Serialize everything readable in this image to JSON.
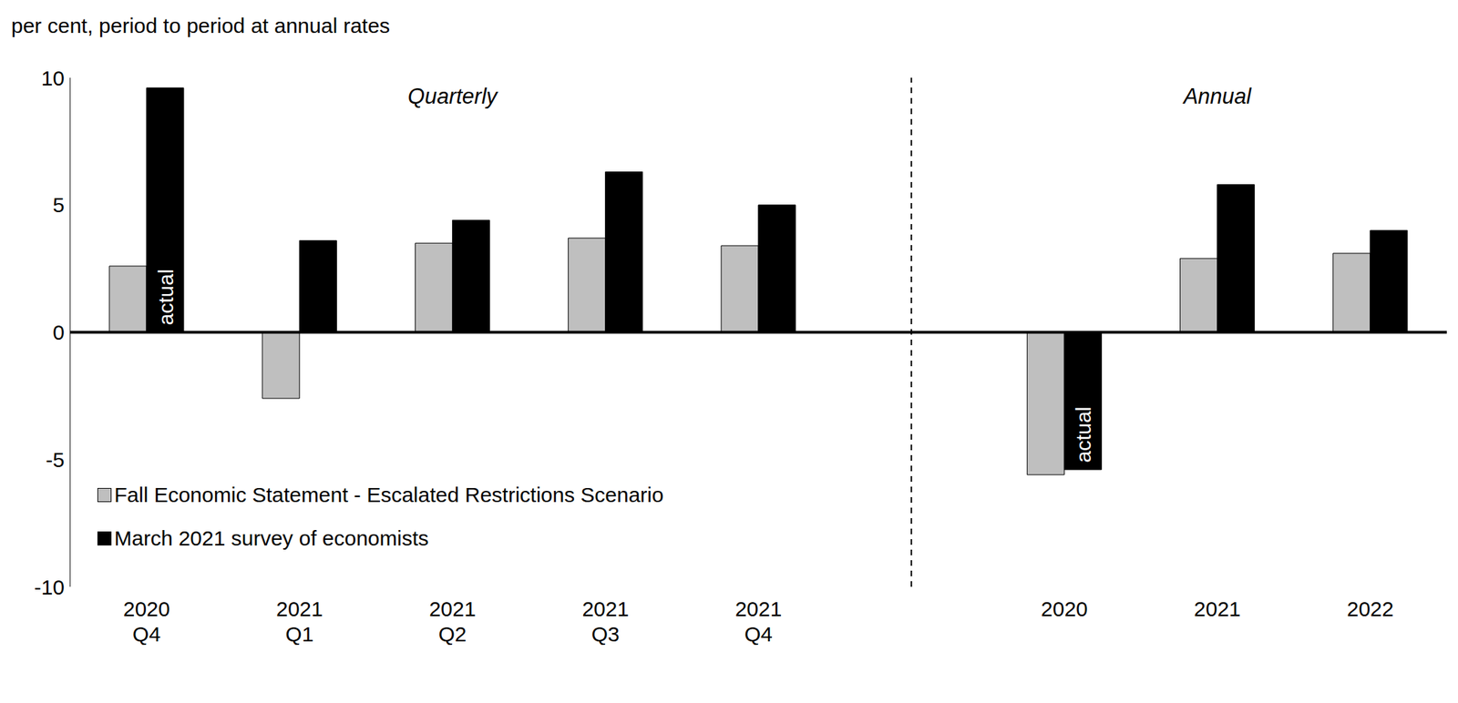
{
  "chart_data": {
    "type": "bar",
    "y_label": "per cent, period to period at annual rates",
    "categories": [
      "2020 Q4",
      "2021 Q1",
      "2021 Q2",
      "2021 Q3",
      "2021 Q4",
      null,
      "2020",
      "2021",
      "2022"
    ],
    "series": [
      {
        "name": "Fall Economic Statement - Escalated Restrictions Scenario",
        "color": "#bfbfbf",
        "values": [
          2.6,
          -2.6,
          3.5,
          3.7,
          3.4,
          null,
          -5.6,
          2.9,
          3.1
        ]
      },
      {
        "name": "March 2021 survey of economists",
        "color": "#000000",
        "values": [
          9.6,
          3.6,
          4.4,
          6.3,
          5.0,
          null,
          -5.4,
          5.8,
          4.0
        ]
      }
    ],
    "ylim": [
      -10,
      10
    ],
    "yticks": [
      -10,
      -5,
      0,
      5,
      10
    ],
    "grid": false,
    "legend": "lower left",
    "group_labels": [
      "Quarterly",
      "Annual"
    ],
    "annotations": [
      {
        "text": "actual",
        "series": "March 2021 survey of economists",
        "category": "2020 Q4"
      },
      {
        "text": "actual",
        "series": "March 2021 survey of economists",
        "category": "2020"
      }
    ]
  }
}
